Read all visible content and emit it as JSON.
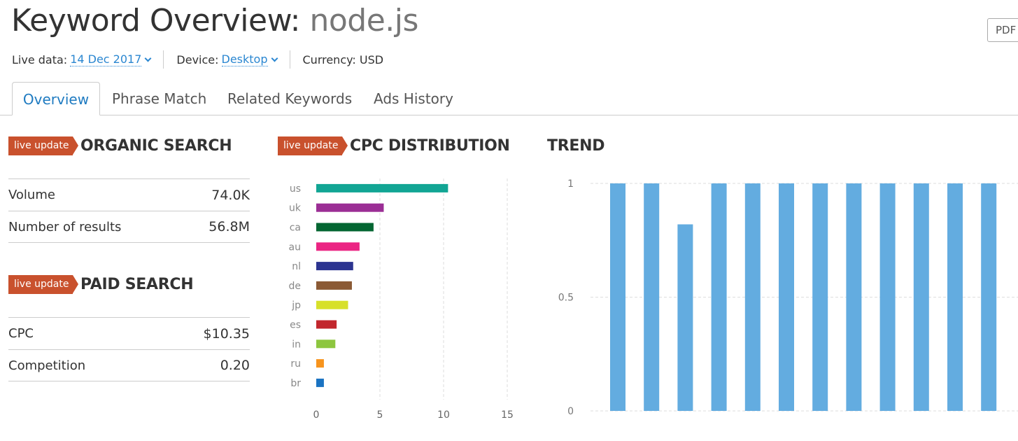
{
  "header": {
    "title_prefix": "Keyword Overview: ",
    "keyword": "node.js",
    "pdf_label": "PDF"
  },
  "meta": {
    "live_data_label": "Live data:",
    "live_data_value": "14 Dec 2017",
    "device_label": "Device:",
    "device_value": "Desktop",
    "currency_label": "Currency: USD"
  },
  "tabs": [
    {
      "label": "Overview",
      "active": true
    },
    {
      "label": "Phrase Match",
      "active": false
    },
    {
      "label": "Related Keywords",
      "active": false
    },
    {
      "label": "Ads History",
      "active": false
    }
  ],
  "organic": {
    "badge": "live update",
    "title": "ORGANIC SEARCH",
    "rows": [
      {
        "label": "Volume",
        "value": "74.0K"
      },
      {
        "label": "Number of results",
        "value": "56.8M"
      }
    ]
  },
  "paid": {
    "badge": "live update",
    "title": "PAID SEARCH",
    "rows": [
      {
        "label": "CPC",
        "value": "$10.35"
      },
      {
        "label": "Competition",
        "value": "0.20"
      }
    ]
  },
  "cpc": {
    "badge": "live update",
    "title": "CPC DISTRIBUTION"
  },
  "trend": {
    "title": "TREND"
  },
  "chart_data": [
    {
      "type": "bar",
      "orientation": "horizontal",
      "categories": [
        "us",
        "uk",
        "ca",
        "au",
        "nl",
        "de",
        "jp",
        "es",
        "in",
        "ru",
        "br"
      ],
      "values": [
        10.35,
        5.3,
        4.5,
        3.4,
        2.9,
        2.8,
        2.5,
        1.6,
        1.5,
        0.6,
        0.6
      ],
      "colors": [
        "#12a594",
        "#9b2e95",
        "#046632",
        "#eb2583",
        "#2c3490",
        "#8b5a35",
        "#d7e02a",
        "#c2272d",
        "#8dc63f",
        "#f7941d",
        "#1a73c2"
      ],
      "x_ticks": [
        0,
        5,
        10,
        15
      ],
      "xlim": [
        0,
        15
      ],
      "grid": true
    },
    {
      "type": "bar",
      "values": [
        1,
        1,
        0.82,
        1,
        1,
        1,
        1,
        1,
        1,
        1,
        1,
        1
      ],
      "color": "#63ace0",
      "y_ticks": [
        "0",
        "0.5",
        "1"
      ],
      "ylim": [
        0,
        1
      ],
      "grid": true
    }
  ]
}
